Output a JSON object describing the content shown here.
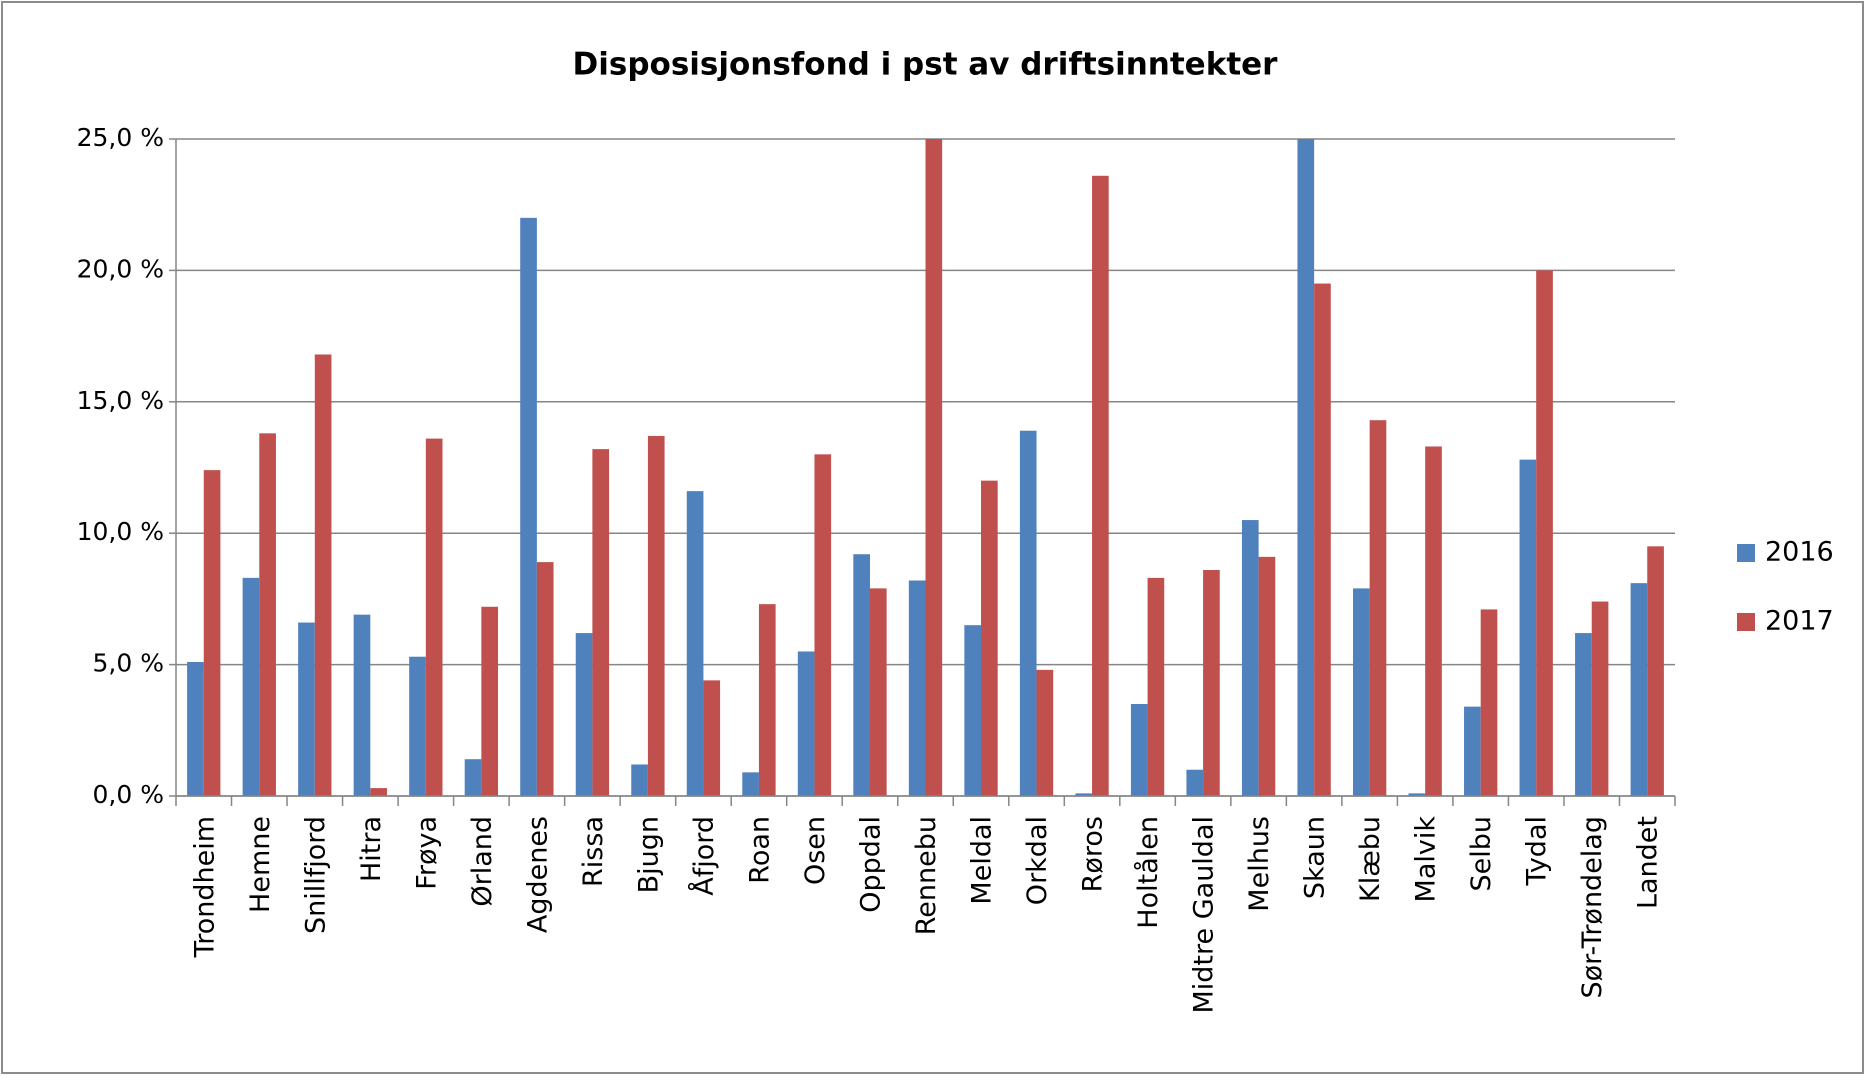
{
  "chart_data": {
    "type": "bar",
    "title": "Disposisjonsfond i pst av driftsinntekter",
    "categories": [
      "Trondheim",
      "Hemne",
      "Snillfjord",
      "Hitra",
      "Frøya",
      "Ørland",
      "Agdenes",
      "Rissa",
      "Bjugn",
      "Åfjord",
      "Roan",
      "Osen",
      "Oppdal",
      "Rennebu",
      "Meldal",
      "Orkdal",
      "Røros",
      "Holtålen",
      "Midtre Gauldal",
      "Melhus",
      "Skaun",
      "Klæbu",
      "Malvik",
      "Selbu",
      "Tydal",
      "Sør-Trøndelag",
      "Landet"
    ],
    "series": [
      {
        "name": "2016",
        "color": "#4f81bd",
        "values": [
          5.1,
          8.3,
          6.6,
          6.9,
          5.3,
          1.4,
          22.0,
          6.2,
          1.2,
          11.6,
          0.9,
          5.5,
          9.2,
          8.2,
          6.5,
          13.9,
          0.1,
          3.5,
          1.0,
          10.5,
          25.0,
          7.9,
          0.1,
          3.4,
          12.8,
          6.2,
          8.1
        ]
      },
      {
        "name": "2017",
        "color": "#c0504d",
        "values": [
          12.4,
          13.8,
          16.8,
          0.3,
          13.6,
          7.2,
          8.9,
          13.2,
          13.7,
          4.4,
          7.3,
          13.0,
          7.9,
          25.0,
          12.0,
          4.8,
          23.6,
          8.3,
          8.6,
          9.1,
          19.5,
          14.3,
          13.3,
          7.1,
          20.0,
          7.4,
          9.5
        ]
      }
    ],
    "ylim": [
      0,
      25
    ],
    "yticks": [
      {
        "value": 0,
        "label": "0,0 %"
      },
      {
        "value": 5,
        "label": "5,0 %"
      },
      {
        "value": 10,
        "label": "10,0 %"
      },
      {
        "value": 15,
        "label": "15,0 %"
      },
      {
        "value": 20,
        "label": "20,0 %"
      },
      {
        "value": 25,
        "label": "25,0 %"
      }
    ],
    "grid": true,
    "legend": "right"
  }
}
